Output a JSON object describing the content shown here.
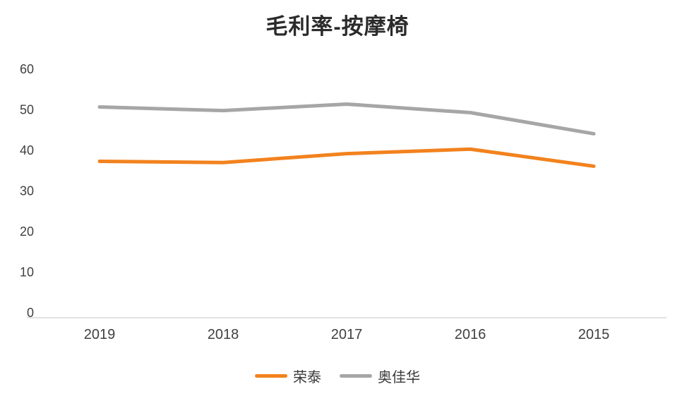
{
  "chart_data": {
    "type": "line",
    "title": "毛利率-按摩椅",
    "categories": [
      "2019",
      "2018",
      "2017",
      "2016",
      "2015"
    ],
    "series": [
      {
        "name": "荣泰",
        "color": "#F2821E",
        "values": [
          37.3,
          37.0,
          39.2,
          40.3,
          36.1
        ]
      },
      {
        "name": "奥佳华",
        "color": "#A6A6A6",
        "values": [
          50.7,
          49.8,
          51.4,
          49.3,
          44.1
        ]
      }
    ],
    "y_ticks": [
      0,
      10,
      20,
      30,
      40,
      50,
      60
    ],
    "ylim": [
      0,
      60
    ],
    "xlabel": "",
    "ylabel": "",
    "grid": false,
    "legend_position": "bottom",
    "axis_line_color": "#D9D9D9",
    "tick_label_color": "#404040"
  }
}
